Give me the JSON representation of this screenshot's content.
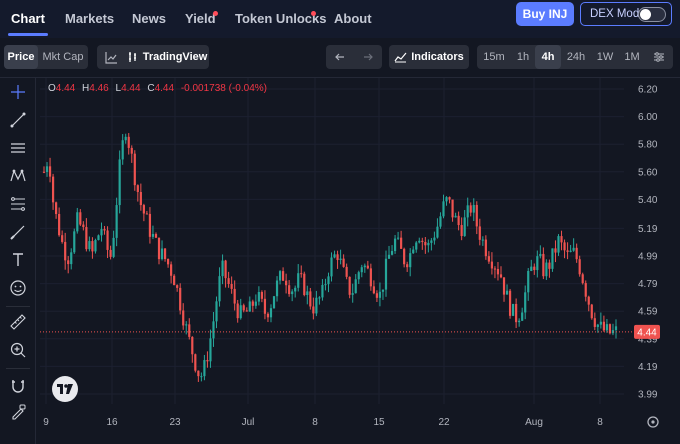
{
  "nav": {
    "tabs": [
      {
        "label": "Chart"
      },
      {
        "label": "Markets"
      },
      {
        "label": "News"
      },
      {
        "label": "Yield"
      },
      {
        "label": "Token Unlocks"
      },
      {
        "label": "About"
      }
    ],
    "buy_label": "Buy INJ",
    "dex_mode_label": "DEX Mode"
  },
  "toolbar": {
    "price_label": "Price",
    "mktcap_label": "Mkt Cap",
    "tradingview_label": "TradingView",
    "indicators_label": "Indicators",
    "intervals": [
      "15m",
      "1h",
      "4h",
      "24h",
      "1W",
      "1M"
    ],
    "selected_interval": "4h"
  },
  "left_tools": [
    "crosshair-icon",
    "trend-line-icon",
    "horizontal-lines-icon",
    "pattern-icon",
    "fib-icon",
    "brush-icon",
    "text-icon",
    "emoji-icon",
    "ruler-icon",
    "zoom-icon",
    "magnet-icon",
    "lock-pencil-icon"
  ],
  "ohlc": {
    "o_label": "O",
    "o": "4.44",
    "h_label": "H",
    "h": "4.46",
    "l_label": "L",
    "l": "4.44",
    "c_label": "C",
    "c": "4.44",
    "change": "-0.001738 (-0.04%)"
  },
  "chart_data": {
    "type": "candlestick",
    "y_ticks": [
      "6.20",
      "6.00",
      "5.80",
      "5.60",
      "5.40",
      "5.19",
      "4.99",
      "4.79",
      "4.59",
      "4.39",
      "4.19",
      "3.99"
    ],
    "x_ticks": [
      "9",
      "16",
      "23",
      "Jul",
      "8",
      "15",
      "22",
      "Aug",
      "8"
    ],
    "ylim": [
      3.99,
      6.2
    ],
    "current_price": "4.44",
    "up_color": "#26a69a",
    "down_color": "#ef5350",
    "close_path": [
      5.6,
      5.72,
      5.35,
      5.2,
      5.05,
      4.98,
      5.1,
      5.25,
      5.18,
      5.08,
      5.0,
      5.12,
      5.2,
      5.05,
      4.98,
      5.35,
      5.72,
      5.92,
      5.75,
      5.55,
      5.38,
      5.28,
      5.18,
      5.1,
      5.02,
      4.98,
      4.92,
      4.84,
      4.7,
      4.55,
      4.4,
      4.28,
      4.15,
      4.12,
      4.28,
      4.46,
      4.7,
      4.9,
      4.82,
      4.72,
      4.62,
      4.56,
      4.58,
      4.6,
      4.7,
      4.66,
      4.58,
      4.62,
      4.74,
      4.82,
      4.86,
      4.78,
      4.74,
      4.82,
      4.78,
      4.68,
      4.62,
      4.66,
      4.72,
      4.88,
      4.96,
      5.02,
      4.9,
      4.78,
      4.72,
      4.82,
      4.94,
      4.9,
      4.84,
      4.76,
      4.7,
      4.88,
      5.02,
      5.1,
      5.04,
      4.96,
      4.98,
      5.12,
      5.16,
      5.08,
      5.06,
      5.14,
      5.22,
      5.34,
      5.4,
      5.3,
      5.22,
      5.2,
      5.28,
      5.36,
      5.22,
      5.12,
      5.04,
      4.98,
      4.92,
      4.86,
      4.72,
      4.62,
      4.54,
      4.58,
      4.7,
      4.86,
      4.94,
      4.96,
      4.88,
      4.92,
      5.0,
      5.1,
      5.04,
      4.98,
      5.02,
      4.96,
      4.84,
      4.7,
      4.58,
      4.5,
      4.46,
      4.44,
      4.43,
      4.44
    ]
  }
}
